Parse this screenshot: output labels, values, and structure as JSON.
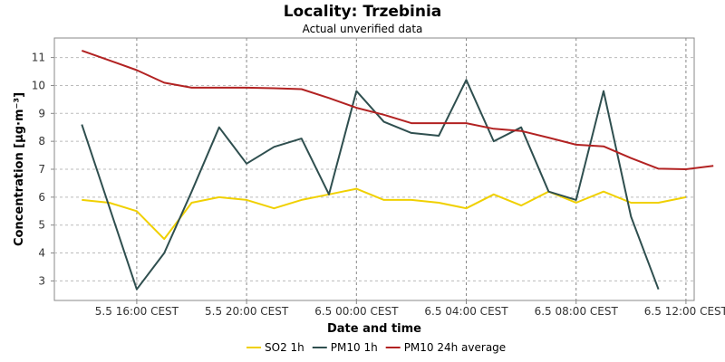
{
  "chart_data": {
    "type": "line",
    "title": "Locality: Trzebinia",
    "subtitle": "Actual unverified data",
    "xlabel": "Date and time",
    "ylabel": "Concentration [µg·m⁻³]",
    "x_axis": {
      "unit": "hours",
      "range": [
        13.0,
        36.3
      ],
      "ticks": [
        {
          "x": 16,
          "label": "5.5 16:00 CEST"
        },
        {
          "x": 20,
          "label": "5.5 20:00 CEST"
        },
        {
          "x": 24,
          "label": "6.5 00:00 CEST"
        },
        {
          "x": 28,
          "label": "6.5 04:00 CEST"
        },
        {
          "x": 32,
          "label": "6.5 08:00 CEST"
        },
        {
          "x": 36,
          "label": "6.5 12:00 CEST"
        }
      ]
    },
    "y_axis": {
      "range": [
        2.3,
        11.7
      ],
      "ticks": [
        3,
        4,
        5,
        6,
        7,
        8,
        9,
        10,
        11
      ]
    },
    "grid": true,
    "legend_position": "bottom",
    "series": [
      {
        "name": "SO2 1h",
        "color": "#f0d000",
        "points": [
          [
            14,
            5.9
          ],
          [
            15,
            5.8
          ],
          [
            16,
            5.5
          ],
          [
            17,
            4.5
          ],
          [
            18,
            5.8
          ],
          [
            19,
            6.0
          ],
          [
            20,
            5.9
          ],
          [
            21,
            5.6
          ],
          [
            22,
            5.9
          ],
          [
            23,
            6.1
          ],
          [
            24,
            6.3
          ],
          [
            25,
            5.9
          ],
          [
            26,
            5.9
          ],
          [
            27,
            5.8
          ],
          [
            28,
            5.6
          ],
          [
            29,
            6.1
          ],
          [
            30,
            5.7
          ],
          [
            31,
            6.2
          ],
          [
            32,
            5.8
          ],
          [
            33,
            6.2
          ],
          [
            34,
            5.8
          ],
          [
            35,
            5.8
          ],
          [
            36,
            6.0
          ]
        ]
      },
      {
        "name": "PM10 1h",
        "color": "#2f4f4f",
        "points": [
          [
            14,
            8.6
          ],
          [
            16,
            2.7
          ],
          [
            17,
            4.0
          ],
          [
            18,
            6.2
          ],
          [
            19,
            8.5
          ],
          [
            20,
            7.2
          ],
          [
            21,
            7.8
          ],
          [
            22,
            8.1
          ],
          [
            23,
            6.1
          ],
          [
            24,
            9.8
          ],
          [
            25,
            8.7
          ],
          [
            26,
            8.3
          ],
          [
            27,
            8.2
          ],
          [
            28,
            10.2
          ],
          [
            29,
            8.0
          ],
          [
            30,
            8.5
          ],
          [
            31,
            6.2
          ],
          [
            32,
            5.9
          ],
          [
            33,
            9.8
          ],
          [
            34,
            5.3
          ],
          [
            35,
            2.7
          ]
        ]
      },
      {
        "name": "PM10 24h average",
        "color": "#b22222",
        "points": [
          [
            14,
            11.25
          ],
          [
            15,
            10.9
          ],
          [
            16,
            10.55
          ],
          [
            17,
            10.1
          ],
          [
            18,
            9.92
          ],
          [
            19,
            9.92
          ],
          [
            20,
            9.92
          ],
          [
            21,
            9.9
          ],
          [
            22,
            9.87
          ],
          [
            23,
            9.55
          ],
          [
            24,
            9.2
          ],
          [
            25,
            8.95
          ],
          [
            26,
            8.65
          ],
          [
            27,
            8.65
          ],
          [
            28,
            8.65
          ],
          [
            29,
            8.45
          ],
          [
            30,
            8.37
          ],
          [
            31,
            8.13
          ],
          [
            32,
            7.88
          ],
          [
            33,
            7.82
          ],
          [
            34,
            7.4
          ],
          [
            35,
            7.02
          ],
          [
            36,
            7.0
          ],
          [
            37,
            7.12
          ]
        ]
      }
    ]
  }
}
